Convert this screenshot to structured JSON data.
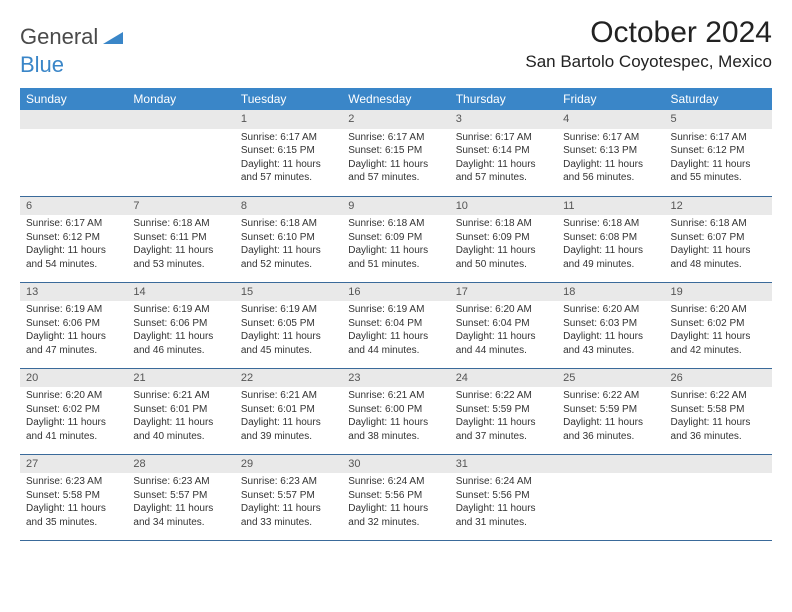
{
  "brand": {
    "part1": "General",
    "part2": "Blue"
  },
  "title": "October 2024",
  "location": "San Bartolo Coyotespec, Mexico",
  "colors": {
    "header_bg": "#3a86c8",
    "header_text": "#ffffff",
    "daybar_bg": "#e9e9e9",
    "row_border": "#3a6a9a",
    "brand_gray": "#4a4a4a",
    "brand_blue": "#3a86c8"
  },
  "weekdays": [
    "Sunday",
    "Monday",
    "Tuesday",
    "Wednesday",
    "Thursday",
    "Friday",
    "Saturday"
  ],
  "weeks": [
    [
      null,
      null,
      {
        "n": "1",
        "sr": "Sunrise: 6:17 AM",
        "ss": "Sunset: 6:15 PM",
        "dl": "Daylight: 11 hours and 57 minutes."
      },
      {
        "n": "2",
        "sr": "Sunrise: 6:17 AM",
        "ss": "Sunset: 6:15 PM",
        "dl": "Daylight: 11 hours and 57 minutes."
      },
      {
        "n": "3",
        "sr": "Sunrise: 6:17 AM",
        "ss": "Sunset: 6:14 PM",
        "dl": "Daylight: 11 hours and 57 minutes."
      },
      {
        "n": "4",
        "sr": "Sunrise: 6:17 AM",
        "ss": "Sunset: 6:13 PM",
        "dl": "Daylight: 11 hours and 56 minutes."
      },
      {
        "n": "5",
        "sr": "Sunrise: 6:17 AM",
        "ss": "Sunset: 6:12 PM",
        "dl": "Daylight: 11 hours and 55 minutes."
      }
    ],
    [
      {
        "n": "6",
        "sr": "Sunrise: 6:17 AM",
        "ss": "Sunset: 6:12 PM",
        "dl": "Daylight: 11 hours and 54 minutes."
      },
      {
        "n": "7",
        "sr": "Sunrise: 6:18 AM",
        "ss": "Sunset: 6:11 PM",
        "dl": "Daylight: 11 hours and 53 minutes."
      },
      {
        "n": "8",
        "sr": "Sunrise: 6:18 AM",
        "ss": "Sunset: 6:10 PM",
        "dl": "Daylight: 11 hours and 52 minutes."
      },
      {
        "n": "9",
        "sr": "Sunrise: 6:18 AM",
        "ss": "Sunset: 6:09 PM",
        "dl": "Daylight: 11 hours and 51 minutes."
      },
      {
        "n": "10",
        "sr": "Sunrise: 6:18 AM",
        "ss": "Sunset: 6:09 PM",
        "dl": "Daylight: 11 hours and 50 minutes."
      },
      {
        "n": "11",
        "sr": "Sunrise: 6:18 AM",
        "ss": "Sunset: 6:08 PM",
        "dl": "Daylight: 11 hours and 49 minutes."
      },
      {
        "n": "12",
        "sr": "Sunrise: 6:18 AM",
        "ss": "Sunset: 6:07 PM",
        "dl": "Daylight: 11 hours and 48 minutes."
      }
    ],
    [
      {
        "n": "13",
        "sr": "Sunrise: 6:19 AM",
        "ss": "Sunset: 6:06 PM",
        "dl": "Daylight: 11 hours and 47 minutes."
      },
      {
        "n": "14",
        "sr": "Sunrise: 6:19 AM",
        "ss": "Sunset: 6:06 PM",
        "dl": "Daylight: 11 hours and 46 minutes."
      },
      {
        "n": "15",
        "sr": "Sunrise: 6:19 AM",
        "ss": "Sunset: 6:05 PM",
        "dl": "Daylight: 11 hours and 45 minutes."
      },
      {
        "n": "16",
        "sr": "Sunrise: 6:19 AM",
        "ss": "Sunset: 6:04 PM",
        "dl": "Daylight: 11 hours and 44 minutes."
      },
      {
        "n": "17",
        "sr": "Sunrise: 6:20 AM",
        "ss": "Sunset: 6:04 PM",
        "dl": "Daylight: 11 hours and 44 minutes."
      },
      {
        "n": "18",
        "sr": "Sunrise: 6:20 AM",
        "ss": "Sunset: 6:03 PM",
        "dl": "Daylight: 11 hours and 43 minutes."
      },
      {
        "n": "19",
        "sr": "Sunrise: 6:20 AM",
        "ss": "Sunset: 6:02 PM",
        "dl": "Daylight: 11 hours and 42 minutes."
      }
    ],
    [
      {
        "n": "20",
        "sr": "Sunrise: 6:20 AM",
        "ss": "Sunset: 6:02 PM",
        "dl": "Daylight: 11 hours and 41 minutes."
      },
      {
        "n": "21",
        "sr": "Sunrise: 6:21 AM",
        "ss": "Sunset: 6:01 PM",
        "dl": "Daylight: 11 hours and 40 minutes."
      },
      {
        "n": "22",
        "sr": "Sunrise: 6:21 AM",
        "ss": "Sunset: 6:01 PM",
        "dl": "Daylight: 11 hours and 39 minutes."
      },
      {
        "n": "23",
        "sr": "Sunrise: 6:21 AM",
        "ss": "Sunset: 6:00 PM",
        "dl": "Daylight: 11 hours and 38 minutes."
      },
      {
        "n": "24",
        "sr": "Sunrise: 6:22 AM",
        "ss": "Sunset: 5:59 PM",
        "dl": "Daylight: 11 hours and 37 minutes."
      },
      {
        "n": "25",
        "sr": "Sunrise: 6:22 AM",
        "ss": "Sunset: 5:59 PM",
        "dl": "Daylight: 11 hours and 36 minutes."
      },
      {
        "n": "26",
        "sr": "Sunrise: 6:22 AM",
        "ss": "Sunset: 5:58 PM",
        "dl": "Daylight: 11 hours and 36 minutes."
      }
    ],
    [
      {
        "n": "27",
        "sr": "Sunrise: 6:23 AM",
        "ss": "Sunset: 5:58 PM",
        "dl": "Daylight: 11 hours and 35 minutes."
      },
      {
        "n": "28",
        "sr": "Sunrise: 6:23 AM",
        "ss": "Sunset: 5:57 PM",
        "dl": "Daylight: 11 hours and 34 minutes."
      },
      {
        "n": "29",
        "sr": "Sunrise: 6:23 AM",
        "ss": "Sunset: 5:57 PM",
        "dl": "Daylight: 11 hours and 33 minutes."
      },
      {
        "n": "30",
        "sr": "Sunrise: 6:24 AM",
        "ss": "Sunset: 5:56 PM",
        "dl": "Daylight: 11 hours and 32 minutes."
      },
      {
        "n": "31",
        "sr": "Sunrise: 6:24 AM",
        "ss": "Sunset: 5:56 PM",
        "dl": "Daylight: 11 hours and 31 minutes."
      },
      null,
      null
    ]
  ]
}
